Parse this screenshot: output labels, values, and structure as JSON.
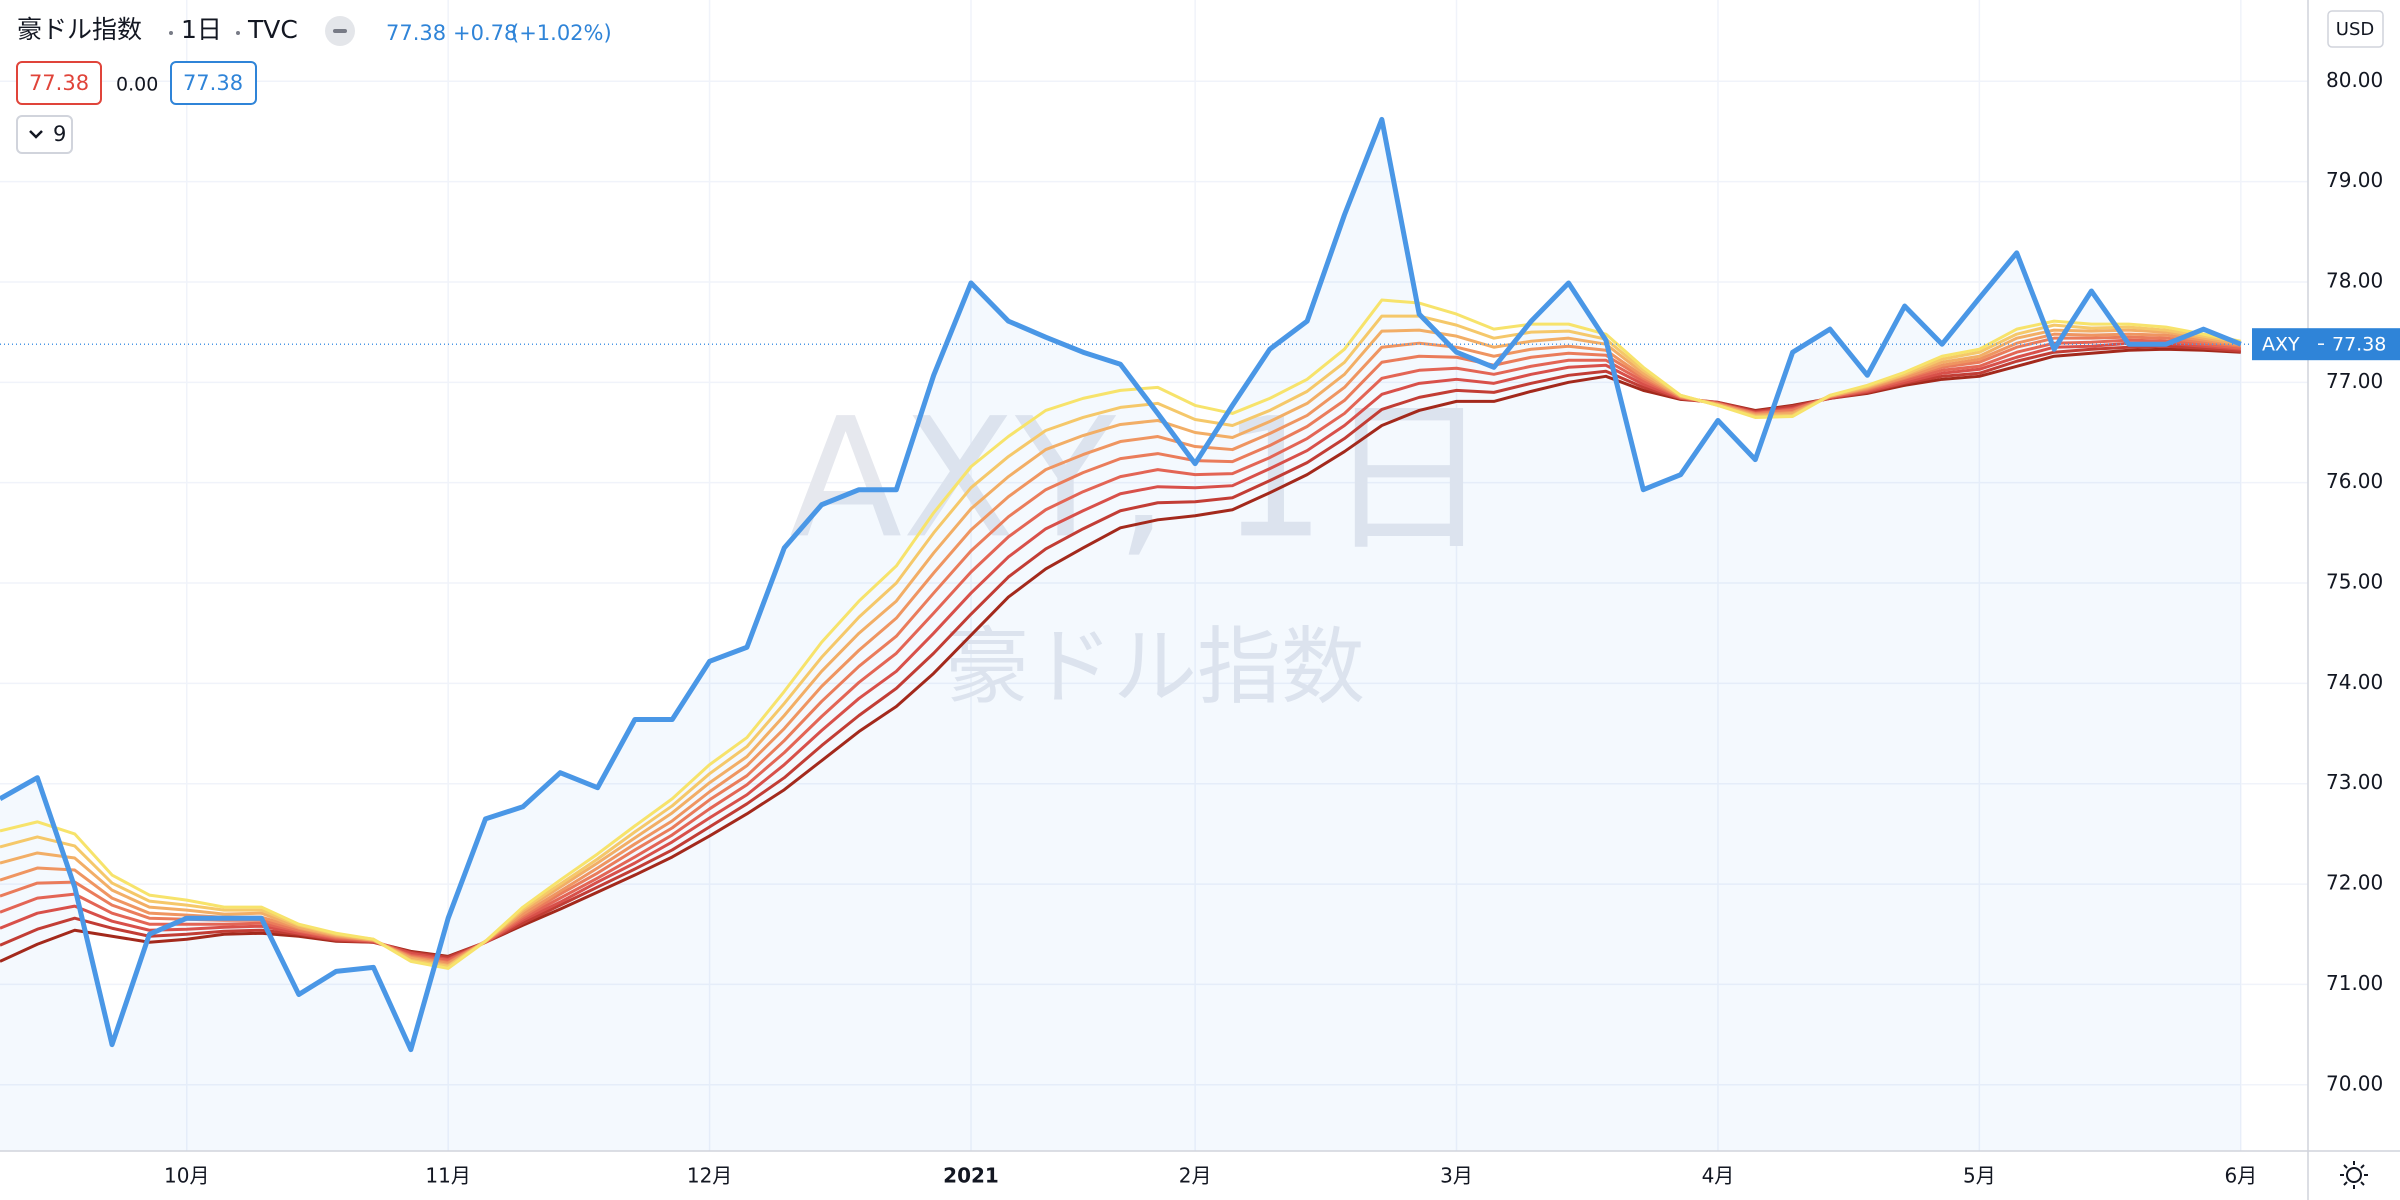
{
  "chart_data": {
    "type": "line",
    "header": {
      "name": "豪ドル指数",
      "interval": "1日",
      "exchange": "TVC",
      "last": "77.38",
      "change": "+0.78",
      "change_pct": "(+1.02%)"
    },
    "ohlc": {
      "left": "77.38",
      "diff": "0.00",
      "right": "77.38"
    },
    "indicators": "9",
    "currency": "USD",
    "watermark": "AXY, 1日",
    "price_tag": {
      "symbol": "AXY",
      "value": "77.38"
    },
    "categories": [
      null,
      null,
      null,
      null,
      null,
      "10月",
      null,
      null,
      null,
      null,
      null,
      null,
      "11月",
      null,
      null,
      null,
      null,
      null,
      null,
      "12月",
      null,
      null,
      null,
      null,
      null,
      null,
      "2021",
      null,
      null,
      null,
      null,
      null,
      "2月",
      null,
      null,
      null,
      null,
      null,
      null,
      "3月",
      null,
      null,
      null,
      null,
      null,
      null,
      "4月",
      null,
      null,
      null,
      null,
      null,
      null,
      "5月",
      null,
      null,
      null,
      null,
      null,
      null,
      "6月"
    ],
    "ylim": [
      69.34,
      80.81
    ],
    "yticks": [
      {
        "value": 70,
        "label": "70.00"
      },
      {
        "value": 71,
        "label": "71.00"
      },
      {
        "value": 72,
        "label": "72.00"
      },
      {
        "value": 73,
        "label": "73.00"
      },
      {
        "value": 74,
        "label": "74.00"
      },
      {
        "value": 75,
        "label": "75.00"
      },
      {
        "value": 76,
        "label": "76.00"
      },
      {
        "value": 77,
        "label": "77.00"
      },
      {
        "value": 78,
        "label": "78.00"
      },
      {
        "value": 79,
        "label": "79.00"
      },
      {
        "value": 80,
        "label": "80.00"
      }
    ],
    "grid": true,
    "series": [
      {
        "color": "#4a97e6",
        "area": true,
        "values": [
          72.85,
          73.06,
          71.97,
          70.4,
          71.5,
          71.66,
          71.66,
          71.66,
          70.9,
          71.13,
          71.17,
          70.35,
          71.66,
          72.65,
          72.77,
          73.11,
          72.96,
          73.64,
          73.64,
          74.22,
          74.36,
          75.35,
          75.78,
          75.93,
          75.93,
          77.07,
          77.99,
          77.61,
          77.45,
          77.3,
          77.18,
          76.69,
          76.19,
          76.77,
          77.33,
          77.61,
          78.67,
          79.62,
          77.68,
          77.3,
          77.15,
          77.61,
          77.99,
          77.42,
          75.93,
          76.08,
          76.62,
          76.23,
          77.3,
          77.53,
          77.07,
          77.76,
          77.38,
          77.84,
          78.29,
          77.33,
          77.91,
          77.38,
          77.38,
          77.53,
          77.38
        ]
      },
      {
        "color": "#f7e36b",
        "values": [
          72.53,
          72.62,
          72.5,
          72.09,
          71.89,
          71.84,
          71.77,
          71.77,
          71.6,
          71.51,
          71.45,
          71.23,
          71.16,
          71.43,
          71.77,
          72.04,
          72.3,
          72.58,
          72.85,
          73.19,
          73.46,
          73.92,
          74.41,
          74.82,
          75.17,
          75.7,
          76.16,
          76.46,
          76.72,
          76.84,
          76.92,
          76.95,
          76.77,
          76.69,
          76.84,
          77.03,
          77.33,
          77.82,
          77.79,
          77.68,
          77.53,
          77.58,
          77.58,
          77.48,
          77.15,
          76.87,
          76.77,
          76.65,
          76.66,
          76.87,
          76.97,
          77.1,
          77.26,
          77.33,
          77.53,
          77.61,
          77.58,
          77.58,
          77.55,
          77.48,
          77.41
        ]
      },
      {
        "color": "#f5c86a",
        "values": [
          72.37,
          72.47,
          72.38,
          72.01,
          71.83,
          71.79,
          71.74,
          71.74,
          71.59,
          71.5,
          71.45,
          71.24,
          71.18,
          71.43,
          71.75,
          72.0,
          72.25,
          72.52,
          72.78,
          73.1,
          73.37,
          73.8,
          74.26,
          74.66,
          75.0,
          75.5,
          75.95,
          76.26,
          76.52,
          76.65,
          76.75,
          76.79,
          76.63,
          76.57,
          76.72,
          76.91,
          77.2,
          77.66,
          77.66,
          77.57,
          77.44,
          77.5,
          77.51,
          77.43,
          77.12,
          76.87,
          76.77,
          76.66,
          76.67,
          76.87,
          76.96,
          77.08,
          77.23,
          77.3,
          77.48,
          77.57,
          77.54,
          77.55,
          77.52,
          77.46,
          77.4
        ]
      },
      {
        "color": "#f2ae66",
        "values": [
          72.21,
          72.31,
          72.26,
          71.94,
          71.77,
          71.74,
          71.7,
          71.71,
          71.57,
          71.49,
          71.44,
          71.26,
          71.19,
          71.43,
          71.73,
          71.97,
          72.21,
          72.46,
          72.71,
          73.01,
          73.27,
          73.68,
          74.12,
          74.5,
          74.82,
          75.3,
          75.74,
          76.06,
          76.33,
          76.47,
          76.58,
          76.62,
          76.5,
          76.45,
          76.61,
          76.79,
          77.08,
          77.51,
          77.52,
          77.46,
          77.35,
          77.41,
          77.44,
          77.38,
          77.09,
          76.86,
          76.78,
          76.67,
          76.69,
          76.86,
          76.95,
          77.07,
          77.2,
          77.26,
          77.44,
          77.52,
          77.51,
          77.52,
          77.5,
          77.44,
          77.38
        ]
      },
      {
        "color": "#ef9561",
        "values": [
          72.04,
          72.16,
          72.14,
          71.86,
          71.71,
          71.69,
          71.67,
          71.67,
          71.56,
          71.48,
          71.44,
          71.27,
          71.21,
          71.43,
          71.7,
          71.93,
          72.16,
          72.4,
          72.63,
          72.92,
          73.18,
          73.55,
          73.97,
          74.33,
          74.65,
          75.1,
          75.53,
          75.86,
          76.13,
          76.28,
          76.41,
          76.46,
          76.36,
          76.33,
          76.49,
          76.67,
          76.95,
          77.35,
          77.39,
          77.35,
          77.26,
          77.33,
          77.36,
          77.32,
          77.06,
          76.86,
          76.78,
          76.68,
          76.7,
          76.86,
          76.94,
          77.05,
          77.17,
          77.23,
          77.39,
          77.48,
          77.47,
          77.48,
          77.47,
          77.42,
          77.37
        ]
      },
      {
        "color": "#ea7c5b",
        "values": [
          71.88,
          72.01,
          72.02,
          71.79,
          71.66,
          71.65,
          71.64,
          71.64,
          71.54,
          71.47,
          71.44,
          71.28,
          71.22,
          71.43,
          71.68,
          71.9,
          72.11,
          72.34,
          72.56,
          72.84,
          73.08,
          73.43,
          73.82,
          74.17,
          74.47,
          74.9,
          75.32,
          75.66,
          75.93,
          76.1,
          76.24,
          76.29,
          76.22,
          76.21,
          76.37,
          76.56,
          76.82,
          77.2,
          77.26,
          77.25,
          77.17,
          77.25,
          77.29,
          77.27,
          77.04,
          76.85,
          76.79,
          76.69,
          76.72,
          76.86,
          76.93,
          77.04,
          77.15,
          77.2,
          77.35,
          77.44,
          77.44,
          77.45,
          77.44,
          77.4,
          77.36
        ]
      },
      {
        "color": "#e36555",
        "values": [
          71.72,
          71.86,
          71.9,
          71.71,
          71.6,
          71.6,
          71.6,
          71.61,
          71.53,
          71.46,
          71.43,
          71.29,
          71.24,
          71.42,
          71.66,
          71.86,
          72.06,
          72.27,
          72.49,
          72.75,
          72.99,
          73.31,
          73.67,
          74.01,
          74.3,
          74.7,
          75.11,
          75.46,
          75.73,
          75.91,
          76.06,
          76.13,
          76.08,
          76.09,
          76.25,
          76.44,
          76.69,
          77.04,
          77.12,
          77.14,
          77.08,
          77.16,
          77.22,
          77.22,
          77.01,
          76.85,
          76.79,
          76.69,
          76.73,
          76.85,
          76.92,
          77.02,
          77.12,
          77.16,
          77.3,
          77.39,
          77.4,
          77.42,
          77.41,
          77.38,
          77.34
        ]
      },
      {
        "color": "#d8504a",
        "values": [
          71.56,
          71.71,
          71.78,
          71.63,
          71.54,
          71.55,
          71.57,
          71.58,
          71.51,
          71.45,
          71.43,
          71.31,
          71.25,
          71.42,
          71.64,
          71.82,
          72.02,
          72.21,
          72.42,
          72.66,
          72.89,
          73.19,
          73.53,
          73.85,
          74.12,
          74.5,
          74.9,
          75.26,
          75.54,
          75.72,
          75.89,
          75.96,
          75.95,
          75.97,
          76.14,
          76.32,
          76.57,
          76.88,
          76.99,
          77.03,
          76.99,
          77.08,
          77.15,
          77.17,
          76.98,
          76.84,
          76.79,
          76.7,
          76.74,
          76.85,
          76.91,
          77.0,
          77.09,
          77.13,
          77.25,
          77.35,
          77.36,
          77.39,
          77.39,
          77.36,
          77.33
        ]
      },
      {
        "color": "#c23d35",
        "values": [
          71.39,
          71.55,
          71.66,
          71.56,
          71.48,
          71.5,
          71.53,
          71.54,
          71.5,
          71.44,
          71.42,
          71.32,
          71.27,
          71.42,
          71.61,
          71.79,
          71.97,
          72.15,
          72.34,
          72.57,
          72.8,
          73.06,
          73.38,
          73.68,
          73.95,
          74.3,
          74.69,
          75.06,
          75.34,
          75.54,
          75.72,
          75.8,
          75.81,
          75.85,
          76.02,
          76.2,
          76.44,
          76.73,
          76.85,
          76.92,
          76.9,
          76.99,
          77.07,
          77.11,
          76.95,
          76.84,
          76.8,
          76.71,
          76.76,
          76.84,
          76.9,
          76.99,
          77.06,
          77.09,
          77.21,
          77.3,
          77.33,
          77.35,
          77.36,
          77.34,
          77.31
        ]
      },
      {
        "color": "#a3291c",
        "values": [
          71.23,
          71.4,
          71.54,
          71.48,
          71.42,
          71.45,
          71.5,
          71.51,
          71.48,
          71.43,
          71.42,
          71.33,
          71.28,
          71.42,
          71.59,
          71.75,
          71.92,
          72.09,
          72.27,
          72.48,
          72.7,
          72.94,
          73.23,
          73.52,
          73.77,
          74.1,
          74.48,
          74.86,
          75.14,
          75.35,
          75.55,
          75.63,
          75.67,
          75.73,
          75.9,
          76.08,
          76.31,
          76.57,
          76.72,
          76.81,
          76.81,
          76.91,
          77.0,
          77.06,
          76.92,
          76.83,
          76.8,
          76.72,
          76.77,
          76.84,
          76.89,
          76.97,
          77.03,
          77.06,
          77.16,
          77.26,
          77.29,
          77.32,
          77.33,
          77.32,
          77.3
        ]
      }
    ]
  }
}
